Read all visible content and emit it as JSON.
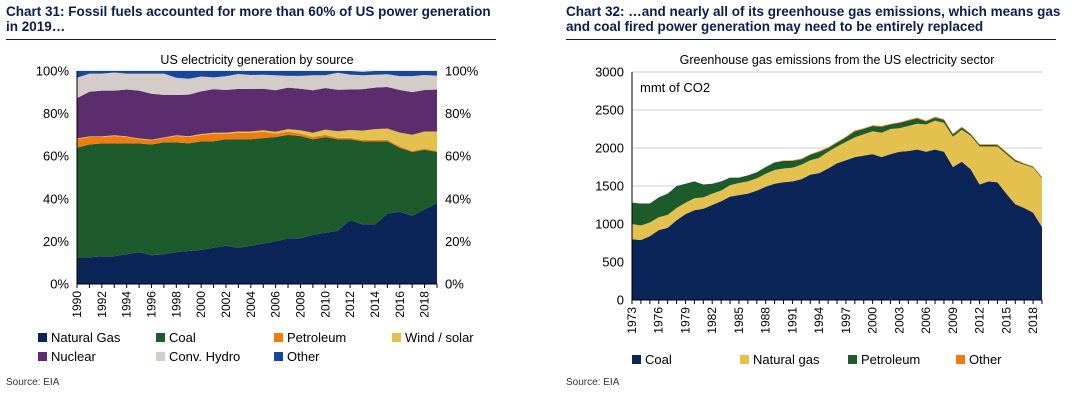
{
  "charts": [
    {
      "heading": "Chart 31: Fossil fuels accounted for more than 60% of US power generation in 2019…",
      "source": "Source: EIA"
    },
    {
      "heading": "Chart 32: …and nearly all of its greenhouse gas emissions, which means gas and coal fired power generation may need to be entirely replaced",
      "source": "Source: EIA"
    }
  ],
  "chart_data": [
    {
      "type": "area",
      "stacked": true,
      "title": "US electricity generation by source",
      "xlabel": "",
      "ylabel": "",
      "x": [
        1990,
        1991,
        1992,
        1993,
        1994,
        1995,
        1996,
        1997,
        1998,
        1999,
        2000,
        2001,
        2002,
        2003,
        2004,
        2005,
        2006,
        2007,
        2008,
        2009,
        2010,
        2011,
        2012,
        2013,
        2014,
        2015,
        2016,
        2017,
        2018,
        2019
      ],
      "x_tick_labels": [
        "1990",
        "1992",
        "1994",
        "1996",
        "1998",
        "2000",
        "2002",
        "2004",
        "2006",
        "2008",
        "2010",
        "2012",
        "2014",
        "2016",
        "2018"
      ],
      "ylim": [
        0,
        100
      ],
      "y_tick_labels_left": [
        "0%",
        "20%",
        "40%",
        "60%",
        "80%",
        "100%"
      ],
      "y_tick_labels_right": [
        "0%",
        "20%",
        "40%",
        "60%",
        "80%",
        "100%"
      ],
      "grid": true,
      "legend_position": "bottom",
      "legend_columns": 4,
      "series": [
        {
          "name": "Natural Gas",
          "color": "#0c2558",
          "values": [
            12.5,
            12.5,
            13,
            13,
            14,
            15,
            13.5,
            14,
            15,
            15.5,
            16,
            17,
            18,
            17,
            18,
            19,
            20,
            21.5,
            21.5,
            23,
            24,
            25,
            30,
            28,
            28,
            33,
            34,
            32,
            35,
            38
          ]
        },
        {
          "name": "Coal",
          "color": "#1e5b2c",
          "values": [
            51.5,
            53,
            53,
            53,
            52,
            51,
            52,
            52.5,
            51.5,
            50.5,
            51,
            50,
            50,
            51,
            50,
            49.5,
            49,
            48.5,
            48,
            45,
            45,
            43,
            38,
            39,
            39,
            34,
            30,
            30,
            28,
            24
          ]
        },
        {
          "name": "Petroleum",
          "color": "#f07c10",
          "values": [
            4,
            3.5,
            3,
            3.5,
            3,
            2,
            2,
            2,
            3,
            3,
            3,
            3.5,
            2.5,
            3,
            3,
            3,
            1.6,
            1.6,
            1.1,
            1,
            1,
            0.7,
            0.6,
            0.6,
            0.7,
            0.7,
            0.6,
            0.5,
            0.6,
            0.5
          ]
        },
        {
          "name": "Wind / solar",
          "color": "#e4c14f",
          "values": [
            0.3,
            0.3,
            0.3,
            0.3,
            0.3,
            0.3,
            0.3,
            0.3,
            0.3,
            0.4,
            0.4,
            0.5,
            0.6,
            0.6,
            0.6,
            0.7,
            0.9,
            1.1,
            1.6,
            2.0,
            2.5,
            3.0,
            3.7,
            4.4,
            5.0,
            5.3,
            6.5,
            7.6,
            8.0,
            9.1
          ]
        },
        {
          "name": "Nuclear",
          "color": "#5b2d6e",
          "values": [
            19,
            21,
            21.5,
            21,
            22,
            22.5,
            21.5,
            20,
            19,
            19.5,
            20,
            20.5,
            20,
            20,
            20,
            19.5,
            19.5,
            19.5,
            19.5,
            20,
            19.5,
            19.5,
            19,
            19.5,
            19.5,
            19.5,
            20,
            20,
            19.5,
            19.7
          ]
        },
        {
          "name": "Conv. Hydro",
          "color": "#d3ccc8",
          "values": [
            9.5,
            8.5,
            8,
            8.5,
            7.5,
            8,
            9.5,
            10,
            8,
            7.5,
            7,
            5.5,
            6.5,
            7,
            6.5,
            6.5,
            7,
            5.5,
            6,
            7,
            6,
            8,
            7,
            6.5,
            6,
            6,
            6.5,
            7.5,
            7,
            6.5
          ]
        },
        {
          "name": "Other",
          "color": "#17479b",
          "values": [
            3.2,
            1.2,
            1.2,
            0.7,
            1.2,
            1.2,
            1.2,
            1.2,
            3.2,
            3.6,
            2.6,
            3.0,
            2.4,
            1.4,
            1.9,
            1.8,
            2.0,
            2.8,
            2.8,
            2.0,
            2.0,
            0.8,
            1.7,
            1.6,
            1.8,
            1.5,
            2.4,
            2.4,
            1.9,
            2.2
          ]
        }
      ]
    },
    {
      "type": "area",
      "stacked": true,
      "title": "Greenhouse gas emissions from the US electricity sector",
      "annotation": "mmt of CO2",
      "xlabel": "",
      "ylabel": "",
      "x": [
        1973,
        1974,
        1975,
        1976,
        1977,
        1978,
        1979,
        1980,
        1981,
        1982,
        1983,
        1984,
        1985,
        1986,
        1987,
        1988,
        1989,
        1990,
        1991,
        1992,
        1993,
        1994,
        1995,
        1996,
        1997,
        1998,
        1999,
        2000,
        2001,
        2002,
        2003,
        2004,
        2005,
        2006,
        2007,
        2008,
        2009,
        2010,
        2011,
        2012,
        2013,
        2014,
        2015,
        2016,
        2017,
        2018,
        2019
      ],
      "x_tick_labels": [
        "1973",
        "1976",
        "1979",
        "1982",
        "1985",
        "1988",
        "1991",
        "1994",
        "1997",
        "2000",
        "2003",
        "2006",
        "2009",
        "2012",
        "2015",
        "2018"
      ],
      "ylim": [
        0,
        3000
      ],
      "y_tick_labels": [
        "0",
        "500",
        "1000",
        "1500",
        "2000",
        "2500",
        "3000"
      ],
      "grid": true,
      "legend_position": "bottom",
      "legend_columns": 4,
      "series": [
        {
          "name": "Coal",
          "color": "#0c2558",
          "values": [
            800,
            790,
            840,
            920,
            950,
            1050,
            1130,
            1180,
            1200,
            1250,
            1300,
            1360,
            1380,
            1400,
            1440,
            1490,
            1530,
            1550,
            1560,
            1590,
            1650,
            1670,
            1730,
            1800,
            1840,
            1880,
            1900,
            1920,
            1880,
            1920,
            1950,
            1960,
            1980,
            1950,
            1980,
            1950,
            1750,
            1820,
            1720,
            1520,
            1560,
            1550,
            1400,
            1260,
            1210,
            1150,
            960
          ]
        },
        {
          "name": "Natural gas",
          "color": "#e4c14f",
          "values": [
            200,
            190,
            180,
            170,
            170,
            160,
            150,
            160,
            150,
            150,
            140,
            150,
            160,
            160,
            160,
            170,
            180,
            180,
            180,
            190,
            190,
            200,
            220,
            220,
            240,
            260,
            280,
            300,
            320,
            330,
            310,
            330,
            340,
            360,
            380,
            380,
            400,
            420,
            440,
            500,
            460,
            470,
            520,
            560,
            570,
            590,
            640
          ]
        },
        {
          "name": "Petroleum",
          "color": "#1e5b2c",
          "values": [
            280,
            290,
            250,
            260,
            280,
            290,
            250,
            220,
            170,
            130,
            120,
            100,
            70,
            80,
            80,
            90,
            100,
            100,
            90,
            70,
            70,
            80,
            50,
            50,
            60,
            80,
            70,
            70,
            80,
            60,
            70,
            70,
            70,
            40,
            40,
            40,
            30,
            30,
            20,
            20,
            20,
            20,
            20,
            20,
            10,
            10,
            10
          ]
        },
        {
          "name": "Other",
          "color": "#f07c10",
          "values": [
            0,
            0,
            0,
            0,
            0,
            0,
            0,
            0,
            0,
            0,
            0,
            0,
            0,
            0,
            0,
            0,
            0,
            5,
            10,
            10,
            10,
            10,
            10,
            10,
            10,
            10,
            10,
            10,
            10,
            10,
            10,
            10,
            10,
            10,
            10,
            10,
            10,
            10,
            10,
            10,
            10,
            10,
            10,
            10,
            10,
            10,
            10
          ]
        }
      ]
    }
  ]
}
